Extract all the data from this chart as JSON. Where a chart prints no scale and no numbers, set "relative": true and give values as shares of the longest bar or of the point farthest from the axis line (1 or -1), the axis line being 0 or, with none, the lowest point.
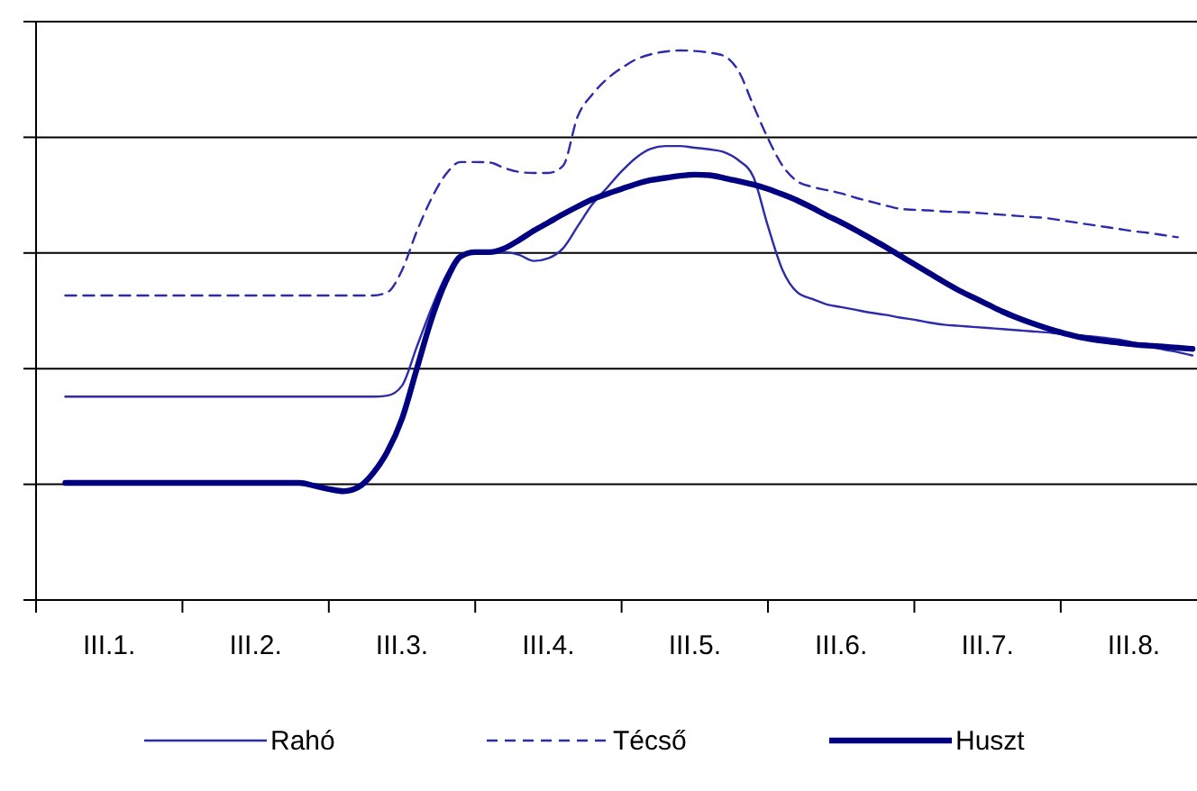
{
  "chart_data": {
    "type": "line",
    "relative": true,
    "grid": "y",
    "legend": "bottom",
    "categories": [
      null,
      null,
      null,
      null,
      null,
      "III.1.",
      null,
      null,
      null,
      null,
      null,
      null,
      null,
      null,
      null,
      "III.2.",
      null,
      null,
      null,
      null,
      null,
      null,
      null,
      null,
      null,
      "III.3.",
      null,
      null,
      null,
      null,
      null,
      null,
      null,
      null,
      null,
      "III.4.",
      null,
      null,
      null,
      null,
      null,
      null,
      null,
      null,
      null,
      "III.5.",
      null,
      null,
      null,
      null,
      null,
      null,
      null,
      null,
      null,
      "III.6.",
      null,
      null,
      null,
      null,
      null,
      null,
      null,
      null,
      null,
      "III.7.",
      null,
      null,
      null,
      null,
      null,
      null,
      null,
      null,
      null,
      "III.8.",
      null,
      null,
      null,
      null
    ],
    "series": [
      {
        "name": "Rahó",
        "color": "#2b2bab",
        "line_style": "solid",
        "values": [
          null,
          null,
          0.37,
          0.37,
          0.37,
          0.37,
          0.37,
          0.37,
          0.37,
          0.37,
          0.37,
          0.37,
          0.37,
          0.37,
          0.37,
          0.37,
          0.37,
          0.37,
          0.37,
          0.37,
          0.37,
          0.37,
          0.37,
          0.37,
          0.372,
          0.39,
          0.46,
          0.53,
          0.59,
          0.627,
          0.633,
          0.633,
          0.633,
          0.628,
          0.617,
          0.622,
          0.64,
          0.68,
          0.72,
          0.75,
          0.78,
          0.805,
          0.821,
          0.826,
          0.826,
          0.823,
          0.82,
          0.815,
          0.8,
          0.77,
          0.68,
          0.6,
          0.56,
          0.548,
          0.538,
          0.533,
          0.528,
          0.523,
          0.519,
          0.514,
          0.51,
          0.505,
          0.501,
          0.499,
          0.497,
          0.495,
          0.493,
          0.491,
          0.489,
          0.487,
          0.484,
          0.482,
          0.48,
          0.477,
          0.474,
          0.468,
          0.462,
          0.456,
          0.451,
          0.445
        ]
      },
      {
        "name": "Técső",
        "color": "#2b2bab",
        "line_style": "dashed",
        "values": [
          null,
          null,
          0.554,
          0.554,
          0.554,
          0.554,
          0.554,
          0.554,
          0.554,
          0.554,
          0.554,
          0.554,
          0.554,
          0.554,
          0.554,
          0.554,
          0.554,
          0.554,
          0.554,
          0.554,
          0.554,
          0.554,
          0.554,
          0.554,
          0.56,
          0.6,
          0.67,
          0.73,
          0.775,
          0.797,
          0.797,
          0.796,
          0.786,
          0.779,
          0.777,
          0.777,
          0.79,
          0.88,
          0.92,
          0.948,
          0.968,
          0.984,
          0.993,
          0.998,
          1,
          0.999,
          0.996,
          0.99,
          0.962,
          0.9,
          0.84,
          0.79,
          0.762,
          0.752,
          0.746,
          0.74,
          0.732,
          0.725,
          0.718,
          0.712,
          0.71,
          0.709,
          0.707,
          0.706,
          0.705,
          0.703,
          0.701,
          0.699,
          0.697,
          0.695,
          0.691,
          0.687,
          0.683,
          0.679,
          0.675,
          0.671,
          0.668,
          0.664,
          0.66,
          null
        ]
      },
      {
        "name": "Huszt",
        "color": "#000080",
        "line_style": "solid",
        "values": [
          null,
          null,
          0.213,
          0.213,
          0.213,
          0.213,
          0.213,
          0.213,
          0.213,
          0.213,
          0.213,
          0.213,
          0.213,
          0.213,
          0.213,
          0.213,
          0.213,
          0.213,
          0.213,
          0.208,
          0.202,
          0.198,
          0.205,
          0.23,
          0.27,
          0.33,
          0.42,
          0.51,
          0.58,
          0.625,
          0.633,
          0.633,
          0.64,
          0.655,
          0.672,
          0.687,
          0.702,
          0.716,
          0.729,
          0.739,
          0.748,
          0.757,
          0.764,
          0.768,
          0.772,
          0.774,
          0.773,
          0.768,
          0.762,
          0.756,
          0.748,
          0.738,
          0.727,
          0.714,
          0.7,
          0.687,
          0.673,
          0.658,
          0.643,
          0.627,
          0.611,
          0.595,
          0.579,
          0.564,
          0.551,
          0.538,
          0.525,
          0.514,
          0.504,
          0.495,
          0.487,
          0.48,
          0.475,
          0.471,
          0.468,
          0.465,
          0.463,
          0.461,
          0.459,
          0.457
        ]
      }
    ]
  }
}
